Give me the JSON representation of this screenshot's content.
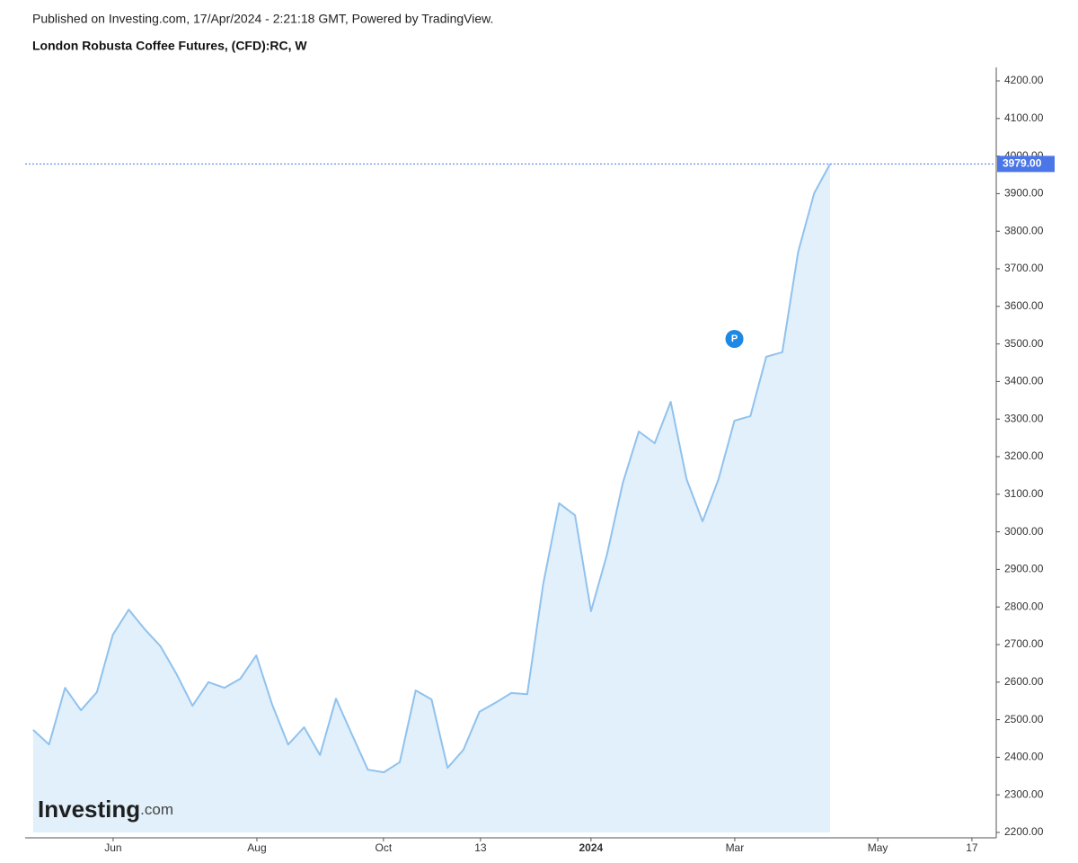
{
  "chart_data": {
    "type": "area",
    "published": "Published on Investing.com, 17/Apr/2024 - 2:21:18 GMT, Powered by TradingView.",
    "title": "London Robusta Coffee Futures, (CFD):RC, W",
    "watermark": {
      "brand": "Investing",
      "suffix": ".com"
    },
    "marker_label": "P",
    "line_color": "#90c2ee",
    "fill_color": "#e1f0fa",
    "values": [
      2473,
      2434,
      2585,
      2525,
      2573,
      2726,
      2793,
      2741,
      2695,
      2621,
      2537,
      2600,
      2585,
      2609,
      2671,
      2540,
      2434,
      2480,
      2406,
      2556,
      2461,
      2367,
      2360,
      2387,
      2578,
      2554,
      2372,
      2420,
      2521,
      2545,
      2571,
      2568,
      2860,
      3076,
      3044,
      2789,
      2939,
      3131,
      3267,
      3236,
      3346,
      3140,
      3028,
      3140,
      3296,
      3308,
      3466,
      3478,
      3745,
      3901,
      3979
    ],
    "price_line": {
      "value": 3979,
      "label": "3979.00",
      "color": "#4a76e8"
    },
    "xlim": [
      -0.5,
      60.37
    ],
    "xticks": [
      {
        "value": 5.02,
        "label": "Jun"
      },
      {
        "value": 14.04,
        "label": "Aug"
      },
      {
        "value": 21.98,
        "label": "Oct"
      },
      {
        "value": 28.07,
        "label": "13"
      },
      {
        "value": 35.0,
        "label": "2024"
      },
      {
        "value": 44.02,
        "label": "Mar"
      },
      {
        "value": 52.99,
        "label": "May"
      },
      {
        "value": 58.9,
        "label": "17"
      }
    ],
    "ylim": [
      2200,
      4200
    ],
    "yticks": [
      {
        "value": 2200,
        "label": "2200.00"
      },
      {
        "value": 2300,
        "label": "2300.00"
      },
      {
        "value": 2400,
        "label": "2400.00"
      },
      {
        "value": 2500,
        "label": "2500.00"
      },
      {
        "value": 2600,
        "label": "2600.00"
      },
      {
        "value": 2700,
        "label": "2700.00"
      },
      {
        "value": 2800,
        "label": "2800.00"
      },
      {
        "value": 2900,
        "label": "2900.00"
      },
      {
        "value": 3000,
        "label": "3000.00"
      },
      {
        "value": 3100,
        "label": "3100.00"
      },
      {
        "value": 3200,
        "label": "3200.00"
      },
      {
        "value": 3300,
        "label": "3300.00"
      },
      {
        "value": 3400,
        "label": "3400.00"
      },
      {
        "value": 3500,
        "label": "3500.00"
      },
      {
        "value": 3600,
        "label": "3600.00"
      },
      {
        "value": 3700,
        "label": "3700.00"
      },
      {
        "value": 3800,
        "label": "3800.00"
      },
      {
        "value": 3900,
        "label": "3900.00"
      },
      {
        "value": 4000,
        "label": "4000.00"
      },
      {
        "value": 4100,
        "label": "4100.00"
      },
      {
        "value": 4200,
        "label": "4200.00"
      }
    ]
  }
}
